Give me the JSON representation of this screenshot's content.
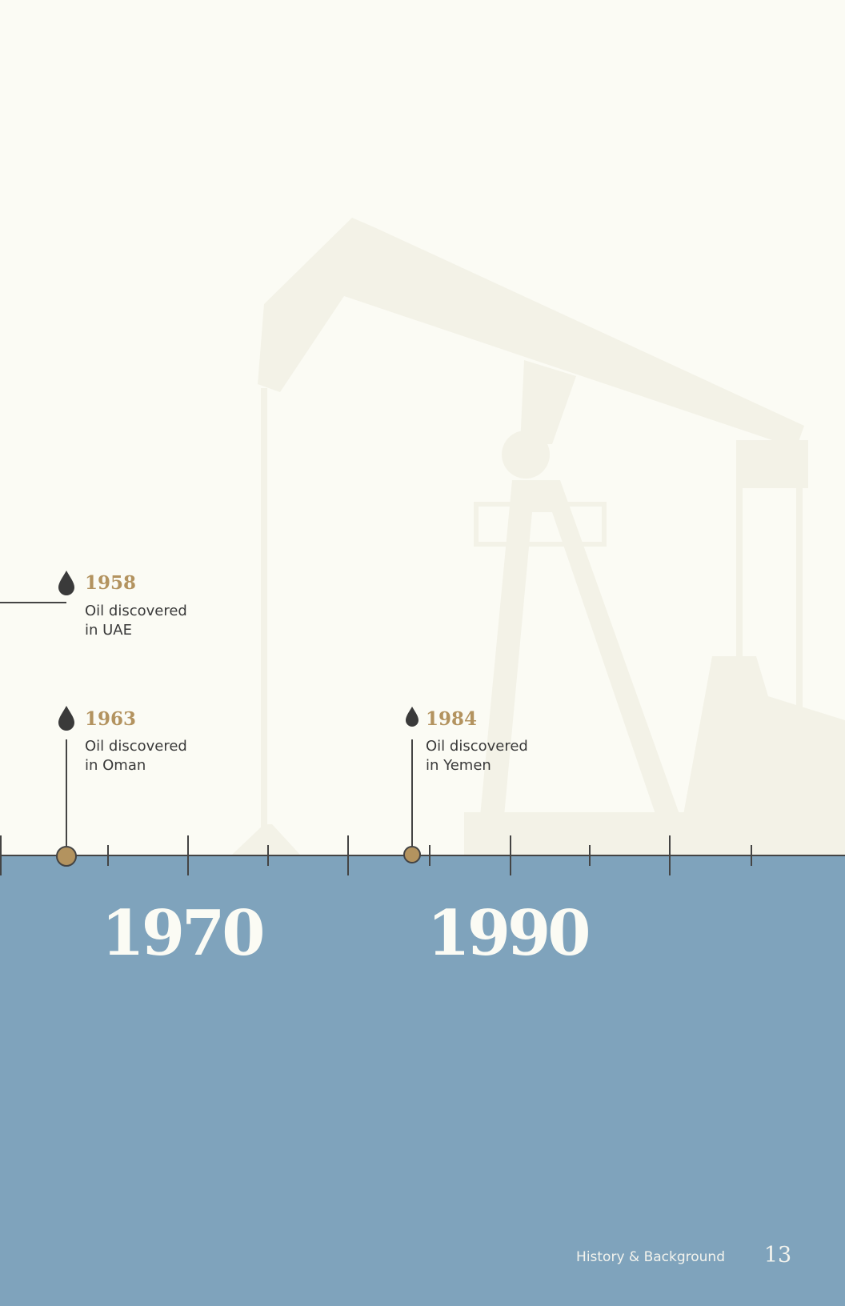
{
  "timeline": {
    "events": [
      {
        "year": "1958",
        "lines": [
          "Oil discovered",
          "in UAE"
        ]
      },
      {
        "year": "1963",
        "lines": [
          "Oil discovered",
          "in Oman"
        ]
      },
      {
        "year": "1984",
        "lines": [
          "Oil discovered",
          "in Yemen"
        ]
      }
    ],
    "decades": [
      "1970",
      "1990"
    ]
  },
  "footer": {
    "section": "History & Background",
    "page": "13"
  }
}
